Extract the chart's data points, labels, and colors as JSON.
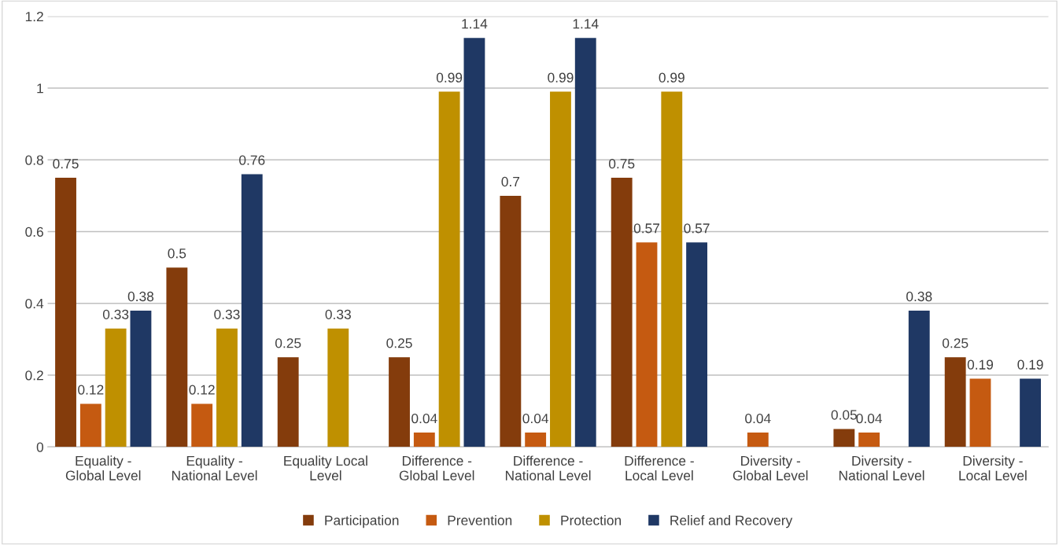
{
  "chart_data": {
    "type": "bar",
    "categories": [
      "Equality - Global Level",
      "Equality - National Level",
      "Equality Local Level",
      "Difference - Global Level",
      "Difference - National Level",
      "Difference - Local Level",
      "Diversity - Global Level",
      "Diversity - National Level",
      "Diversity - Local Level"
    ],
    "series": [
      {
        "name": "Participation",
        "color": "#843c0c",
        "values": [
          0.75,
          0.5,
          0.25,
          0.25,
          0.7,
          0.75,
          null,
          0.05,
          0.25
        ]
      },
      {
        "name": "Prevention",
        "color": "#c55a11",
        "values": [
          0.12,
          0.12,
          null,
          0.04,
          0.04,
          0.57,
          0.04,
          0.04,
          0.19
        ]
      },
      {
        "name": "Protection",
        "color": "#bf9000",
        "values": [
          0.33,
          0.33,
          0.33,
          0.99,
          0.99,
          0.99,
          null,
          null,
          null
        ]
      },
      {
        "name": "Relief and Recovery",
        "color": "#1f3864",
        "values": [
          0.38,
          0.76,
          null,
          1.14,
          1.14,
          0.57,
          null,
          0.38,
          0.19
        ]
      }
    ],
    "ylim": [
      0,
      1.2
    ],
    "yticks": [
      0,
      0.2,
      0.4,
      0.6,
      0.8,
      1,
      1.2
    ],
    "grid": "y",
    "legend": "bottom",
    "data_labels": true
  }
}
